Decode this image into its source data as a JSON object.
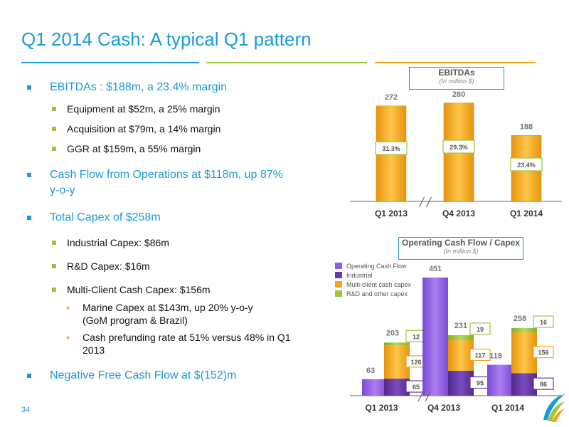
{
  "title": "Q1 2014 Cash: A typical Q1 pattern",
  "page_number": "34",
  "colors": {
    "accent": "#1a9bd7",
    "green": "#9bc53d",
    "orange": "#f5a31a",
    "purple": "#8e5ee6",
    "dark_purple": "#6a3aa8"
  },
  "bullets": {
    "ebitda": "EBITDAs : $188m, a 23.4% margin",
    "equipment": "Equipment at $52m, a 25% margin",
    "acquisition": "Acquisition at $79m, a 14% margin",
    "ggr": "GGR at $159m, a 55% margin",
    "cfo_line1": "Cash Flow from Operations at $118m, up 87%",
    "cfo_line2": "y-o-y",
    "capex": "Total Capex of $258m",
    "industrial": "Industrial Capex: $86m",
    "rnd": "R&D Capex: $16m",
    "multiclient": "Multi-Client Cash Capex: $156m",
    "marine_line1": "Marine Capex at $143m, up 20% y-o-y",
    "marine_line2": "(GoM program & Brazil)",
    "prefund_line1": "Cash prefunding rate at 51% versus 48% in Q1",
    "prefund_line2": "2013",
    "fcf": "Negative Free Cash Flow at $(152)m"
  },
  "chart_data": [
    {
      "type": "bar",
      "title": "EBITDAs",
      "subtitle": "(In million $)",
      "categories": [
        "Q1 2013",
        "Q4 2013",
        "Q1 2014"
      ],
      "values": [
        272,
        280,
        188
      ],
      "value_labels": [
        "272",
        "280",
        "188"
      ],
      "margin_labels": [
        "31.3%",
        "29.3%",
        "23.4%"
      ],
      "ylim": [
        0,
        300
      ],
      "axis_break_between": [
        "Q1 2013",
        "Q4 2013"
      ],
      "grid": false
    },
    {
      "type": "bar",
      "title": "Operating Cash Flow / Capex",
      "subtitle": "(In million $)",
      "categories": [
        "Q1 2013",
        "Q4 2013",
        "Q1 2014"
      ],
      "legend": [
        "Operating Cash Flow",
        "Industrial",
        "Multi-client cash capex",
        "R&D and other capex"
      ],
      "legend_position": "top-left",
      "series": [
        {
          "name": "Operating Cash Flow",
          "values": [
            63,
            451,
            118
          ],
          "labels": [
            "63",
            "451",
            "118"
          ]
        },
        {
          "name": "Industrial",
          "values": [
            65,
            95,
            86
          ],
          "labels": [
            "65",
            "95",
            "86"
          ]
        },
        {
          "name": "Multi-client cash capex",
          "values": [
            126,
            117,
            156
          ],
          "labels": [
            "126",
            "117",
            "156"
          ]
        },
        {
          "name": "R&D and other capex",
          "values": [
            12,
            19,
            16
          ],
          "labels": [
            "12",
            "19",
            "16"
          ]
        }
      ],
      "capex_totals": [
        "203",
        "231",
        "258"
      ],
      "ylim": [
        0,
        470
      ],
      "axis_break_between": [
        "Q1 2013",
        "Q4 2013"
      ],
      "grid": false
    }
  ]
}
